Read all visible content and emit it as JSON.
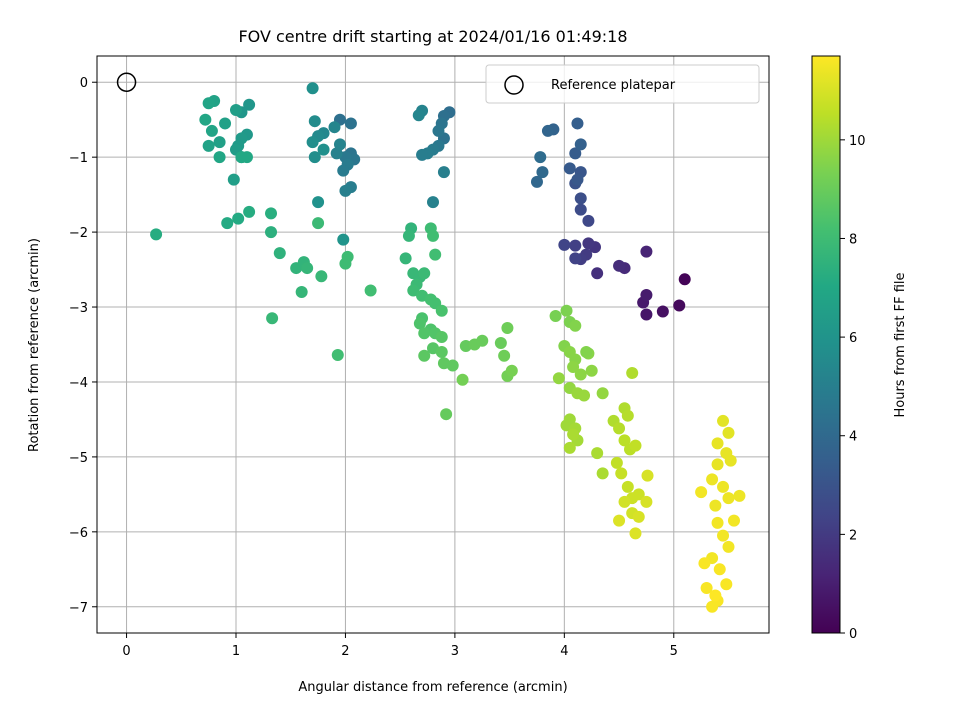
{
  "chart_data": {
    "type": "scatter",
    "title": "FOV centre drift starting at 2024/01/16 01:49:18",
    "xlabel": "Angular distance from reference (arcmin)",
    "ylabel": "Rotation from reference (arcmin)",
    "xlim": [
      -0.27,
      5.87
    ],
    "ylim": [
      -7.35,
      0.35
    ],
    "xticks": [
      0,
      1,
      2,
      3,
      4,
      5
    ],
    "xtick_labels": [
      "0",
      "1",
      "2",
      "3",
      "4",
      "5"
    ],
    "yticks": [
      0,
      -1,
      -2,
      -3,
      -4,
      -5,
      -6,
      -7
    ],
    "ytick_labels": [
      "0",
      "−1",
      "−2",
      "−3",
      "−4",
      "−5",
      "−6",
      "−7"
    ],
    "grid": true,
    "legend": {
      "position": "top-right",
      "entries": [
        "Reference platepar"
      ]
    },
    "reference_point": {
      "x": 0,
      "y": 0
    },
    "colorbar": {
      "label": "Hours from first FF file",
      "range": [
        0,
        11.7
      ],
      "ticks": [
        0,
        2,
        4,
        6,
        8,
        10
      ],
      "tick_labels": [
        "0",
        "2",
        "4",
        "6",
        "8",
        "10"
      ],
      "colormap": "viridis"
    },
    "points": [
      [
        5.1,
        -2.63,
        0.1
      ],
      [
        5.05,
        -2.98,
        0.3
      ],
      [
        4.9,
        -3.06,
        0.5
      ],
      [
        4.75,
        -3.1,
        0.7
      ],
      [
        4.72,
        -2.94,
        0.8
      ],
      [
        4.75,
        -2.84,
        0.9
      ],
      [
        4.75,
        -2.26,
        1.2
      ],
      [
        4.55,
        -2.48,
        1.4
      ],
      [
        4.5,
        -2.45,
        1.5
      ],
      [
        4.3,
        -2.55,
        1.6
      ],
      [
        4.28,
        -2.2,
        1.8
      ],
      [
        4.22,
        -2.15,
        1.9
      ],
      [
        4.2,
        -2.3,
        2.0
      ],
      [
        4.15,
        -2.36,
        2.1
      ],
      [
        4.1,
        -2.18,
        2.2
      ],
      [
        4.1,
        -2.35,
        2.3
      ],
      [
        4.0,
        -2.17,
        2.4
      ],
      [
        4.22,
        -1.85,
        2.5
      ],
      [
        4.15,
        -1.7,
        2.7
      ],
      [
        4.15,
        -1.55,
        2.8
      ],
      [
        4.1,
        -1.35,
        3.0
      ],
      [
        4.15,
        -1.2,
        3.1
      ],
      [
        4.12,
        -1.3,
        3.2
      ],
      [
        4.05,
        -1.15,
        3.3
      ],
      [
        4.1,
        -0.95,
        3.4
      ],
      [
        4.12,
        -0.55,
        3.5
      ],
      [
        4.15,
        -0.83,
        3.6
      ],
      [
        3.9,
        -0.63,
        3.7
      ],
      [
        3.85,
        -0.65,
        3.8
      ],
      [
        3.75,
        -1.33,
        3.9
      ],
      [
        3.8,
        -1.2,
        4.0
      ],
      [
        3.78,
        -1.0,
        4.1
      ],
      [
        2.95,
        -0.4,
        4.2
      ],
      [
        2.9,
        -0.45,
        4.3
      ],
      [
        2.9,
        -0.75,
        4.4
      ],
      [
        2.88,
        -0.55,
        4.5
      ],
      [
        2.85,
        -0.65,
        4.6
      ],
      [
        2.85,
        -0.85,
        4.7
      ],
      [
        2.8,
        -0.9,
        4.8
      ],
      [
        2.75,
        -0.95,
        4.9
      ],
      [
        2.7,
        -0.97,
        4.9
      ],
      [
        2.9,
        -1.2,
        5.0
      ],
      [
        2.8,
        -1.6,
        5.1
      ],
      [
        2.7,
        -0.38,
        5.2
      ],
      [
        2.67,
        -0.44,
        5.3
      ],
      [
        1.95,
        -0.5,
        4.3
      ],
      [
        2.05,
        -0.55,
        4.4
      ],
      [
        2.05,
        -0.95,
        4.5
      ],
      [
        2.08,
        -1.03,
        4.6
      ],
      [
        2.0,
        -1.0,
        4.7
      ],
      [
        2.02,
        -1.1,
        4.8
      ],
      [
        1.98,
        -1.18,
        4.8
      ],
      [
        2.05,
        -1.4,
        4.9
      ],
      [
        2.0,
        -1.45,
        5.0
      ],
      [
        1.92,
        -0.95,
        5.1
      ],
      [
        1.95,
        -0.83,
        5.2
      ],
      [
        1.9,
        -0.6,
        5.3
      ],
      [
        1.8,
        -0.68,
        5.4
      ],
      [
        1.75,
        -0.72,
        5.5
      ],
      [
        1.72,
        -0.52,
        5.6
      ],
      [
        1.7,
        -0.8,
        5.7
      ],
      [
        1.72,
        -1.0,
        5.7
      ],
      [
        1.8,
        -0.9,
        5.8
      ],
      [
        1.75,
        -1.6,
        5.9
      ],
      [
        1.7,
        -0.08,
        5.8
      ],
      [
        1.98,
        -2.1,
        6.0
      ],
      [
        1.12,
        -0.3,
        6.1
      ],
      [
        1.05,
        -0.4,
        6.1
      ],
      [
        1.1,
        -0.7,
        6.2
      ],
      [
        1.05,
        -0.75,
        6.3
      ],
      [
        1.02,
        -0.85,
        6.3
      ],
      [
        1.0,
        -0.9,
        6.4
      ],
      [
        1.05,
        -1.0,
        6.4
      ],
      [
        0.98,
        -1.3,
        6.5
      ],
      [
        1.0,
        -0.37,
        6.5
      ],
      [
        0.9,
        -0.55,
        6.6
      ],
      [
        0.85,
        -0.8,
        6.6
      ],
      [
        0.75,
        -0.85,
        6.7
      ],
      [
        0.8,
        -0.25,
        6.7
      ],
      [
        0.75,
        -0.28,
        6.8
      ],
      [
        0.78,
        -0.65,
        6.8
      ],
      [
        0.72,
        -0.5,
        6.9
      ],
      [
        0.85,
        -1.0,
        6.9
      ],
      [
        1.1,
        -1.0,
        7.0
      ],
      [
        0.92,
        -1.88,
        7.1
      ],
      [
        1.02,
        -1.82,
        7.1
      ],
      [
        1.05,
        -1.0,
        7.0
      ],
      [
        1.12,
        -1.73,
        7.2
      ],
      [
        0.27,
        -2.03,
        7.2
      ],
      [
        1.32,
        -1.75,
        7.3
      ],
      [
        1.32,
        -2.0,
        7.4
      ],
      [
        1.4,
        -2.28,
        7.5
      ],
      [
        1.55,
        -2.48,
        7.6
      ],
      [
        1.62,
        -2.4,
        7.6
      ],
      [
        1.65,
        -2.48,
        7.7
      ],
      [
        1.6,
        -2.8,
        7.7
      ],
      [
        1.33,
        -3.15,
        7.8
      ],
      [
        1.78,
        -2.59,
        7.8
      ],
      [
        1.75,
        -1.88,
        7.9
      ],
      [
        2.0,
        -2.42,
        8.0
      ],
      [
        2.02,
        -2.33,
        8.0
      ],
      [
        2.23,
        -2.78,
        8.1
      ],
      [
        1.93,
        -3.64,
        8.1
      ],
      [
        2.6,
        -1.95,
        7.6
      ],
      [
        2.58,
        -2.05,
        7.7
      ],
      [
        2.55,
        -2.35,
        7.7
      ],
      [
        2.62,
        -2.55,
        7.8
      ],
      [
        2.68,
        -2.6,
        7.8
      ],
      [
        2.72,
        -2.55,
        7.9
      ],
      [
        2.65,
        -2.7,
        7.9
      ],
      [
        2.62,
        -2.78,
        8.0
      ],
      [
        2.78,
        -1.95,
        8.0
      ],
      [
        2.8,
        -2.05,
        8.1
      ],
      [
        2.82,
        -2.3,
        8.1
      ],
      [
        2.7,
        -2.85,
        8.1
      ],
      [
        2.78,
        -2.9,
        8.2
      ],
      [
        2.82,
        -2.95,
        8.2
      ],
      [
        2.88,
        -3.05,
        8.3
      ],
      [
        2.7,
        -3.15,
        8.3
      ],
      [
        2.68,
        -3.22,
        8.4
      ],
      [
        2.78,
        -3.3,
        8.4
      ],
      [
        2.82,
        -3.35,
        8.5
      ],
      [
        2.72,
        -3.35,
        8.5
      ],
      [
        2.88,
        -3.4,
        8.6
      ],
      [
        2.8,
        -3.55,
        8.6
      ],
      [
        2.72,
        -3.65,
        8.7
      ],
      [
        2.88,
        -3.6,
        8.7
      ],
      [
        2.9,
        -3.75,
        8.8
      ],
      [
        2.98,
        -3.78,
        8.8
      ],
      [
        2.92,
        -4.43,
        8.9
      ],
      [
        3.1,
        -3.52,
        8.9
      ],
      [
        3.18,
        -3.5,
        9.0
      ],
      [
        3.25,
        -3.45,
        9.0
      ],
      [
        3.42,
        -3.48,
        9.0
      ],
      [
        3.45,
        -3.65,
        9.1
      ],
      [
        3.48,
        -3.28,
        9.1
      ],
      [
        3.07,
        -3.97,
        9.2
      ],
      [
        3.48,
        -3.92,
        9.2
      ],
      [
        3.52,
        -3.85,
        9.3
      ],
      [
        3.92,
        -3.12,
        9.3
      ],
      [
        4.02,
        -3.05,
        9.4
      ],
      [
        4.05,
        -3.2,
        9.4
      ],
      [
        4.1,
        -3.25,
        9.5
      ],
      [
        4.0,
        -3.52,
        9.5
      ],
      [
        4.05,
        -3.6,
        9.6
      ],
      [
        4.1,
        -3.7,
        9.6
      ],
      [
        4.08,
        -3.8,
        9.7
      ],
      [
        4.15,
        -3.9,
        9.7
      ],
      [
        3.95,
        -3.95,
        9.8
      ],
      [
        4.05,
        -4.08,
        9.8
      ],
      [
        4.12,
        -4.15,
        9.9
      ],
      [
        4.18,
        -4.18,
        9.9
      ],
      [
        4.05,
        -4.5,
        10.0
      ],
      [
        4.02,
        -4.58,
        10.0
      ],
      [
        4.1,
        -4.62,
        10.1
      ],
      [
        4.12,
        -4.78,
        10.1
      ],
      [
        4.05,
        -4.88,
        10.2
      ],
      [
        4.08,
        -4.7,
        10.2
      ],
      [
        4.22,
        -3.62,
        9.6
      ],
      [
        4.25,
        -3.85,
        9.7
      ],
      [
        4.35,
        -4.15,
        9.8
      ],
      [
        4.2,
        -3.6,
        9.5
      ],
      [
        4.3,
        -4.95,
        10.2
      ],
      [
        4.35,
        -5.22,
        10.2
      ],
      [
        4.45,
        -4.52,
        10.3
      ],
      [
        4.55,
        -4.35,
        10.3
      ],
      [
        4.58,
        -4.45,
        10.4
      ],
      [
        4.5,
        -4.62,
        10.4
      ],
      [
        4.55,
        -4.78,
        10.5
      ],
      [
        4.6,
        -4.9,
        10.5
      ],
      [
        4.65,
        -4.85,
        10.6
      ],
      [
        4.62,
        -3.88,
        10.3
      ],
      [
        4.48,
        -5.08,
        10.6
      ],
      [
        4.52,
        -5.22,
        10.7
      ],
      [
        4.58,
        -5.4,
        10.7
      ],
      [
        4.62,
        -5.55,
        10.8
      ],
      [
        4.68,
        -5.5,
        10.8
      ],
      [
        4.55,
        -5.6,
        10.9
      ],
      [
        4.62,
        -5.75,
        10.9
      ],
      [
        4.68,
        -5.8,
        11.0
      ],
      [
        4.75,
        -5.6,
        11.0
      ],
      [
        4.76,
        -5.25,
        11.0
      ],
      [
        4.65,
        -6.02,
        11.1
      ],
      [
        4.5,
        -5.85,
        11.1
      ],
      [
        5.45,
        -4.52,
        11.2
      ],
      [
        5.5,
        -4.68,
        11.2
      ],
      [
        5.4,
        -4.82,
        11.3
      ],
      [
        5.48,
        -4.95,
        11.3
      ],
      [
        5.52,
        -5.05,
        11.3
      ],
      [
        5.4,
        -5.1,
        11.3
      ],
      [
        5.35,
        -5.3,
        11.4
      ],
      [
        5.45,
        -5.4,
        11.4
      ],
      [
        5.5,
        -5.55,
        11.4
      ],
      [
        5.38,
        -5.65,
        11.4
      ],
      [
        5.4,
        -5.88,
        11.5
      ],
      [
        5.45,
        -6.05,
        11.5
      ],
      [
        5.5,
        -6.2,
        11.5
      ],
      [
        5.35,
        -6.35,
        11.5
      ],
      [
        5.42,
        -6.5,
        11.6
      ],
      [
        5.48,
        -6.7,
        11.6
      ],
      [
        5.4,
        -6.92,
        11.6
      ],
      [
        5.35,
        -7.0,
        11.6
      ],
      [
        5.28,
        -6.42,
        11.6
      ],
      [
        5.25,
        -5.47,
        11.5
      ],
      [
        5.6,
        -5.52,
        11.4
      ],
      [
        5.55,
        -5.85,
        11.5
      ],
      [
        5.3,
        -6.75,
        11.6
      ],
      [
        5.38,
        -6.85,
        11.7
      ]
    ]
  }
}
